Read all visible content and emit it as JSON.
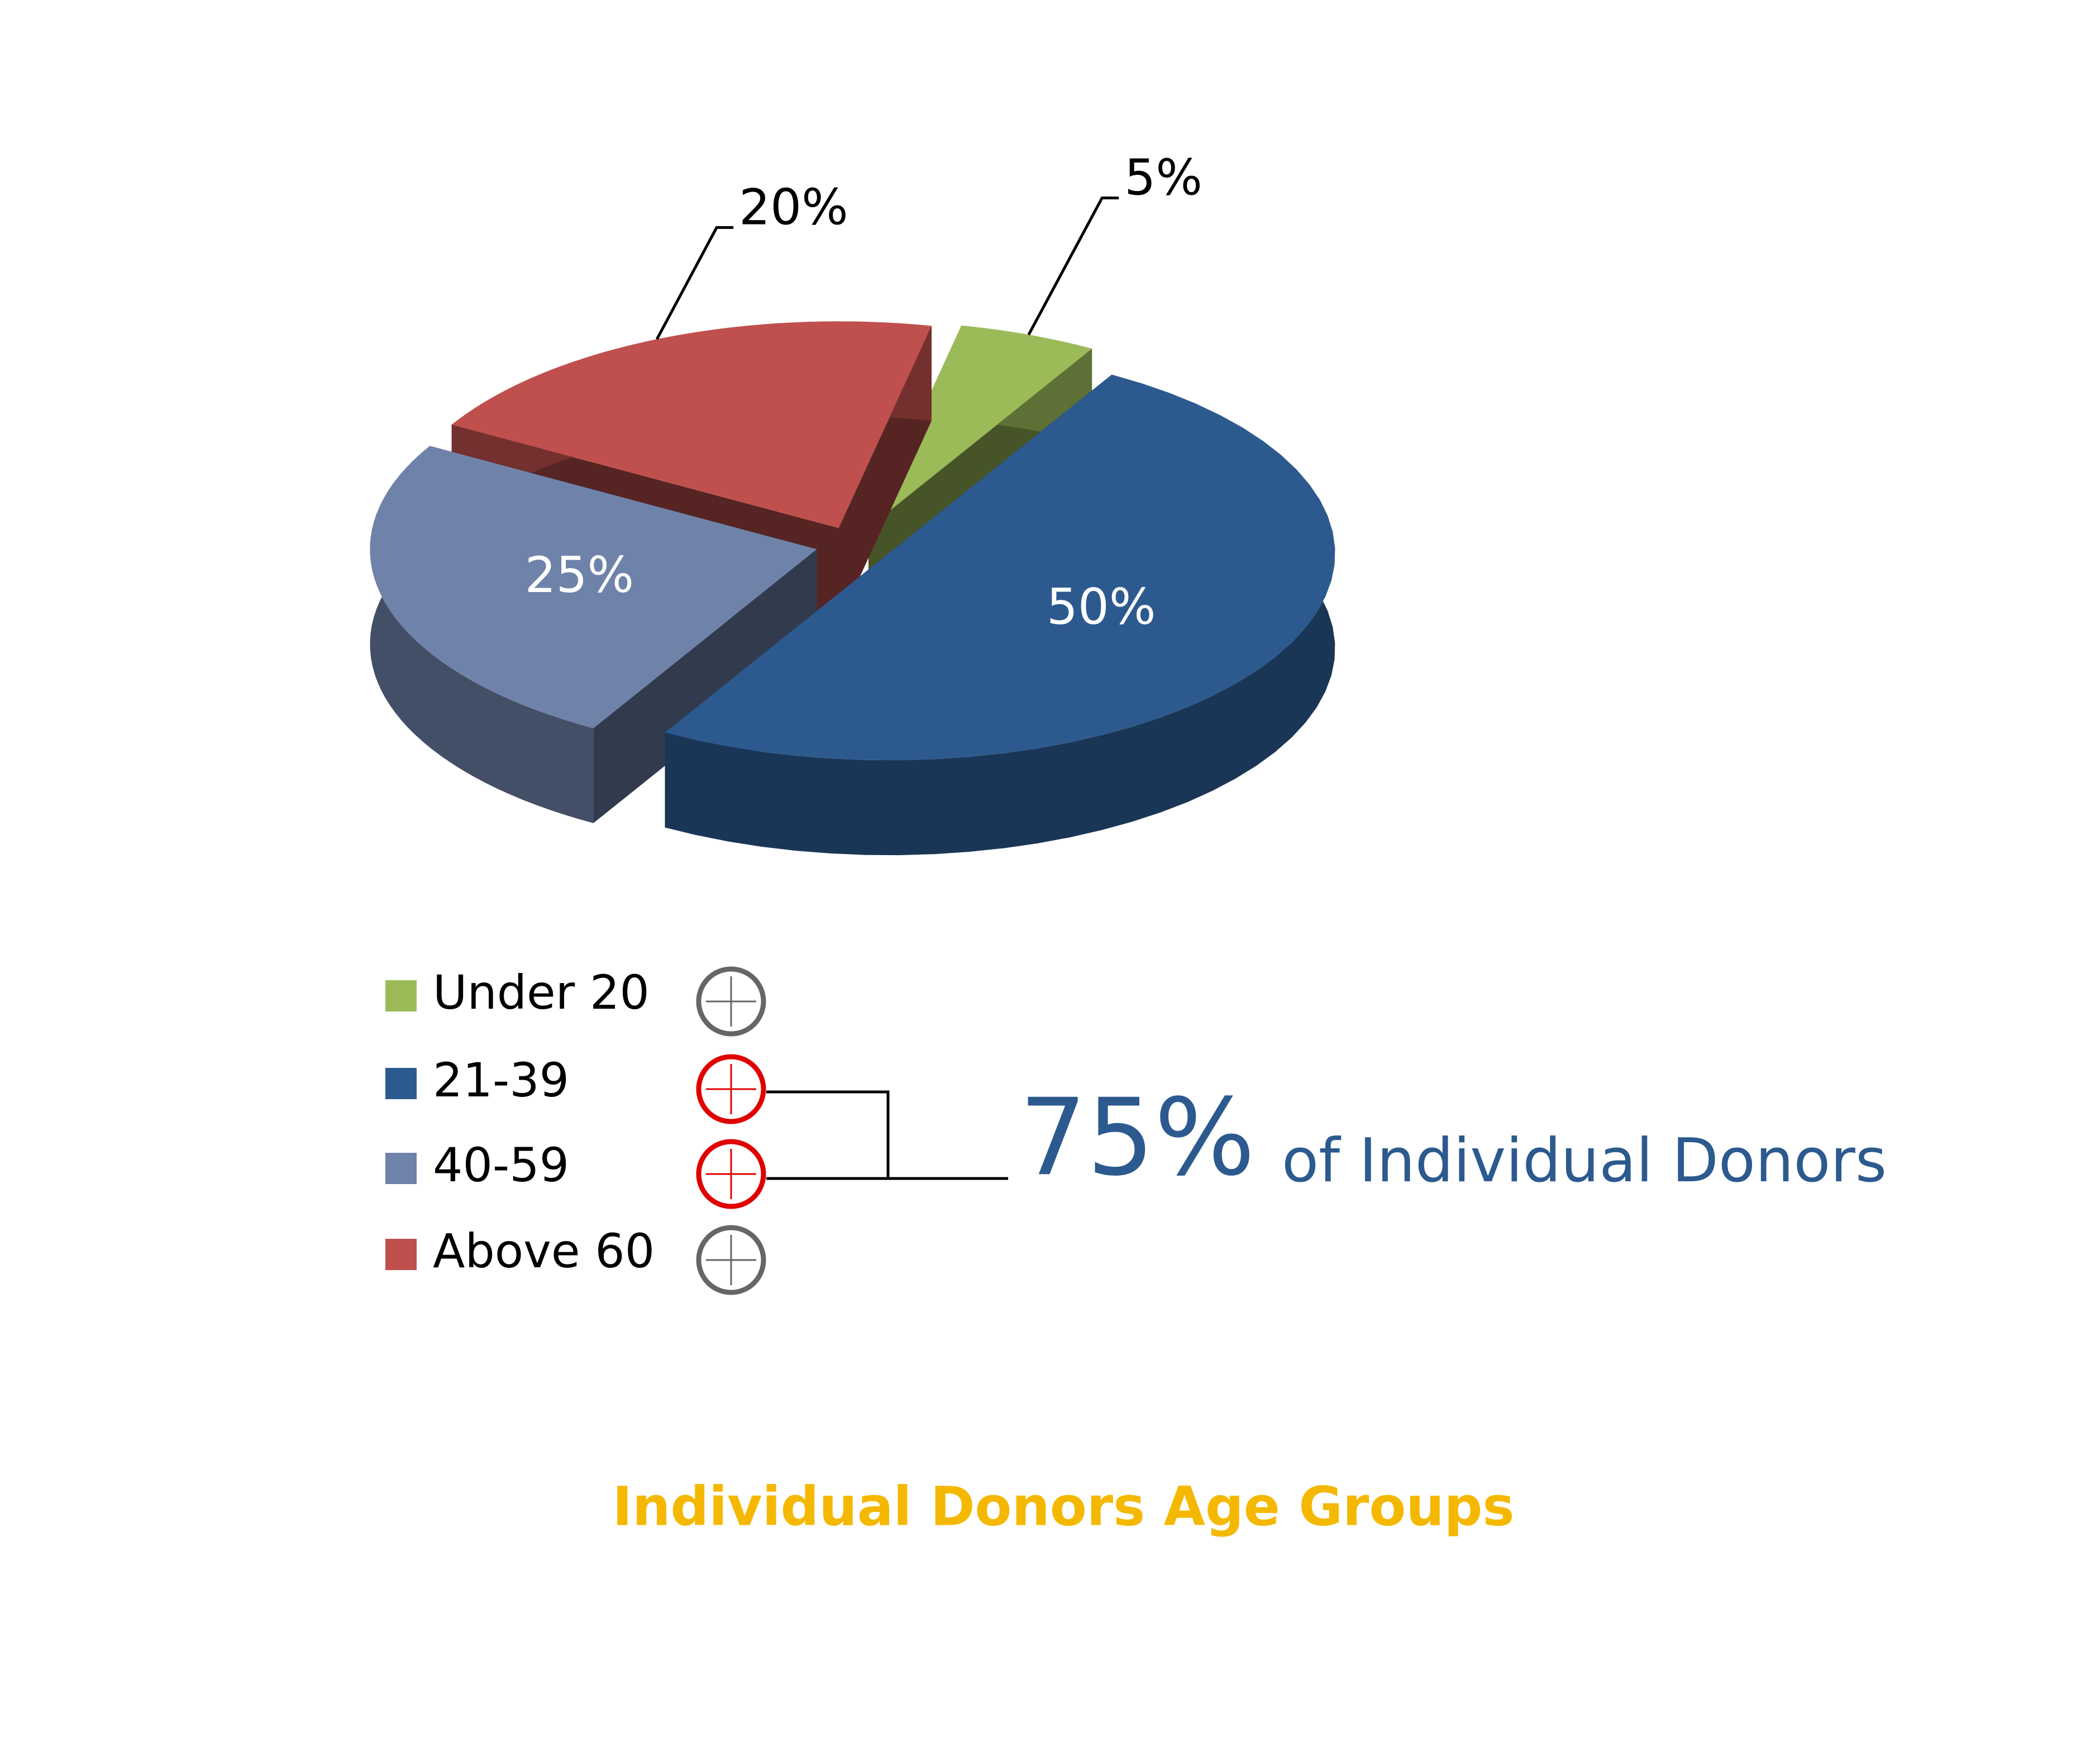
{
  "chart_data": {
    "type": "pie",
    "title": "Individual Donors Age Groups",
    "categories": [
      "Under 20",
      "21-39",
      "40-59",
      "Above 60"
    ],
    "values": [
      5,
      50,
      25,
      20
    ],
    "value_labels": [
      "5%",
      "50%",
      "25%",
      "20%"
    ],
    "colors": [
      "#9bbb59",
      "#2c5a8f",
      "#6f83aa",
      "#c0504d"
    ],
    "legend": "bottom-left",
    "annotation": {
      "value": "75%",
      "text": "of Individual Donors"
    }
  }
}
